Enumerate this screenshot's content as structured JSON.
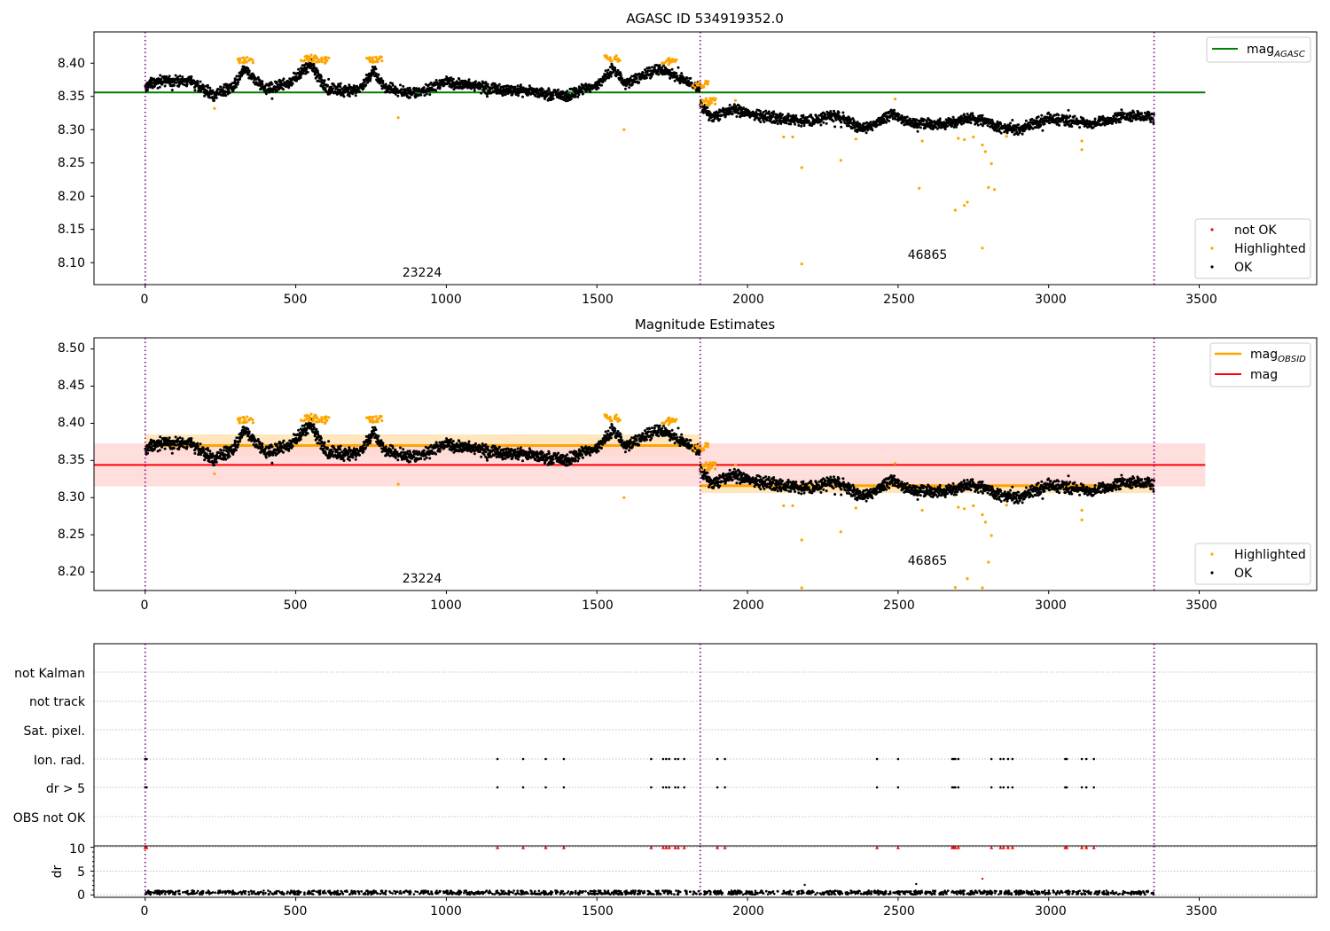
{
  "figure": {
    "title": "AGASC ID 534919352.0",
    "panel2_title": "Magnitude Estimates"
  },
  "colors": {
    "ok": "#000000",
    "highlighted": "#ffa500",
    "not_ok": "#ff0000",
    "agasc_line": "#008000",
    "obsid_line": "#ffa500",
    "mag_line": "#ff0000",
    "obs_boundary": "#800080",
    "band_obsid": "#ffe2b0",
    "band_mag": "#ffd8d8"
  },
  "chart_data": [
    {
      "type": "scatter",
      "panel": "agasc_magnitudes",
      "title": "AGASC ID 534919352.0",
      "xlim": [
        -170,
        3890
      ],
      "ylim": [
        8.067,
        8.447
      ],
      "xticks": [
        0,
        500,
        1000,
        1500,
        2000,
        2500,
        3000,
        3500
      ],
      "yticks": [
        8.1,
        8.15,
        8.2,
        8.25,
        8.3,
        8.35,
        8.4
      ],
      "ytick_labels": [
        "8.10",
        "8.15",
        "8.20",
        "8.25",
        "8.30",
        "8.35",
        "8.40"
      ],
      "grid": false,
      "obs_boundaries": [
        0,
        1843,
        3350
      ],
      "obs_labels": [
        {
          "text": "23224",
          "x": 920,
          "y": 8.079
        },
        {
          "text": "46865",
          "x": 2600,
          "y": 8.106
        }
      ],
      "hlines": [
        {
          "name": "mag_AGASC",
          "label_main": "mag",
          "label_sub": "AGASC",
          "y": 8.356,
          "x0": -170,
          "x1": 3520,
          "color": "#008000"
        }
      ],
      "legend_upper": {
        "position": "upper right",
        "entries": [
          {
            "main": "mag",
            "sub": "AGASC",
            "kind": "line",
            "color": "#008000"
          }
        ]
      },
      "legend_lower": {
        "position": "lower right",
        "entries": [
          {
            "label": "not OK",
            "kind": "dot",
            "color": "#ff0000"
          },
          {
            "label": "Highlighted",
            "kind": "dot",
            "color": "#ffa500"
          },
          {
            "label": "OK",
            "kind": "dot",
            "color": "#000000"
          }
        ]
      },
      "series": [
        {
          "name": "OK",
          "segments": [
            {
              "x": [
                0,
                1843
              ],
              "y_profile": [
                [
                  0,
                  8.365
                ],
                [
                  60,
                  8.375
                ],
                [
                  150,
                  8.372
                ],
                [
                  230,
                  8.352
                ],
                [
                  300,
                  8.368
                ],
                [
                  330,
                  8.392
                ],
                [
                  400,
                  8.36
                ],
                [
                  480,
                  8.372
                ],
                [
                  550,
                  8.398
                ],
                [
                  600,
                  8.362
                ],
                [
                  700,
                  8.358
                ],
                [
                  760,
                  8.388
                ],
                [
                  800,
                  8.362
                ],
                [
                  900,
                  8.354
                ],
                [
                  1000,
                  8.372
                ],
                [
                  1150,
                  8.362
                ],
                [
                  1300,
                  8.356
                ],
                [
                  1400,
                  8.35
                ],
                [
                  1460,
                  8.362
                ],
                [
                  1500,
                  8.366
                ],
                [
                  1550,
                  8.392
                ],
                [
                  1600,
                  8.368
                ],
                [
                  1700,
                  8.392
                ],
                [
                  1800,
                  8.372
                ],
                [
                  1843,
                  8.362
                ]
              ]
            },
            {
              "x": [
                1843,
                3350
              ],
              "y_profile": [
                [
                  1843,
                  8.34
                ],
                [
                  1880,
                  8.318
                ],
                [
                  1950,
                  8.33
                ],
                [
                  2050,
                  8.32
                ],
                [
                  2200,
                  8.312
                ],
                [
                  2300,
                  8.322
                ],
                [
                  2380,
                  8.3
                ],
                [
                  2480,
                  8.322
                ],
                [
                  2550,
                  8.31
                ],
                [
                  2650,
                  8.308
                ],
                [
                  2750,
                  8.318
                ],
                [
                  2850,
                  8.302
                ],
                [
                  2900,
                  8.3
                ],
                [
                  3000,
                  8.318
                ],
                [
                  3150,
                  8.308
                ],
                [
                  3250,
                  8.322
                ],
                [
                  3350,
                  8.318
                ]
              ]
            }
          ]
        },
        {
          "name": "Highlighted",
          "points": [
            [
              230,
              8.332
            ],
            [
              840,
              8.318
            ],
            [
              1590,
              8.3
            ],
            [
              1960,
              8.344
            ],
            [
              2120,
              8.289
            ],
            [
              2150,
              8.289
            ],
            [
              2180,
              8.243
            ],
            [
              2180,
              8.098
            ],
            [
              2310,
              8.254
            ],
            [
              2360,
              8.286
            ],
            [
              2490,
              8.346
            ],
            [
              2570,
              8.212
            ],
            [
              2580,
              8.283
            ],
            [
              2690,
              8.179
            ],
            [
              2700,
              8.287
            ],
            [
              2720,
              8.285
            ],
            [
              2720,
              8.186
            ],
            [
              2730,
              8.191
            ],
            [
              2750,
              8.289
            ],
            [
              2780,
              8.277
            ],
            [
              2780,
              8.122
            ],
            [
              2790,
              8.267
            ],
            [
              2800,
              8.213
            ],
            [
              2810,
              8.249
            ],
            [
              2820,
              8.21
            ],
            [
              2860,
              8.29
            ],
            [
              3110,
              8.283
            ],
            [
              3110,
              8.27
            ]
          ],
          "clusters": [
            [
              310,
              8.404
            ],
            [
              520,
              8.408
            ],
            [
              560,
              8.404
            ],
            [
              740,
              8.405
            ],
            [
              1530,
              8.407
            ],
            [
              1720,
              8.403
            ],
            [
              1820,
              8.368
            ],
            [
              1850,
              8.342
            ]
          ]
        }
      ]
    },
    {
      "type": "scatter",
      "panel": "magnitude_estimates",
      "title": "Magnitude Estimates",
      "xlim": [
        -170,
        3890
      ],
      "ylim": [
        8.175,
        8.515
      ],
      "xticks": [
        0,
        500,
        1000,
        1500,
        2000,
        2500,
        3000,
        3500
      ],
      "yticks": [
        8.2,
        8.25,
        8.3,
        8.35,
        8.4,
        8.45,
        8.5
      ],
      "ytick_labels": [
        "8.20",
        "8.25",
        "8.30",
        "8.35",
        "8.40",
        "8.45",
        "8.50"
      ],
      "grid": false,
      "obs_boundaries": [
        0,
        1843,
        3350
      ],
      "obs_labels": [
        {
          "text": "23224",
          "x": 920,
          "y": 8.184
        },
        {
          "text": "46865",
          "x": 2600,
          "y": 8.211
        }
      ],
      "bands": [
        {
          "name": "mag_OBSID_band_1",
          "x0": 0,
          "x1": 1843,
          "y0": 8.355,
          "y1": 8.385,
          "color": "#ffe2b0"
        },
        {
          "name": "mag_OBSID_band_2",
          "x0": 1843,
          "x1": 3350,
          "y0": 8.306,
          "y1": 8.326,
          "color": "#ffe2b0"
        },
        {
          "name": "mag_band",
          "x0": -170,
          "x1": 3520,
          "y0": 8.315,
          "y1": 8.373,
          "color": "#ffd8d8"
        }
      ],
      "hlines": [
        {
          "name": "mag_OBSID_1",
          "y": 8.37,
          "x0": 0,
          "x1": 1843,
          "color": "#ffa500"
        },
        {
          "name": "mag_OBSID_2",
          "y": 8.316,
          "x0": 1843,
          "x1": 3350,
          "color": "#ffa500"
        },
        {
          "name": "mag",
          "y": 8.344,
          "x0": -170,
          "x1": 3520,
          "color": "#ff0000"
        }
      ],
      "legend_upper": {
        "position": "upper right",
        "entries": [
          {
            "main": "mag",
            "sub": "OBSID",
            "kind": "line",
            "color": "#ffa500"
          },
          {
            "main": "mag",
            "sub": "",
            "kind": "line",
            "color": "#ff0000"
          }
        ]
      },
      "legend_lower": {
        "position": "lower right",
        "entries": [
          {
            "label": "Highlighted",
            "kind": "dot",
            "color": "#ffa500"
          },
          {
            "label": "OK",
            "kind": "dot",
            "color": "#000000"
          }
        ]
      },
      "series": [
        {
          "name": "OK",
          "same_as_panel": "agasc_magnitudes"
        },
        {
          "name": "Highlighted",
          "points": [
            [
              230,
              8.332
            ],
            [
              840,
              8.318
            ],
            [
              1590,
              8.3
            ],
            [
              1960,
              8.344
            ],
            [
              2120,
              8.289
            ],
            [
              2150,
              8.289
            ],
            [
              2180,
              8.243
            ],
            [
              2180,
              8.177
            ],
            [
              2310,
              8.254
            ],
            [
              2360,
              8.286
            ],
            [
              2490,
              8.346
            ],
            [
              2580,
              8.283
            ],
            [
              2690,
              8.179
            ],
            [
              2700,
              8.287
            ],
            [
              2720,
              8.285
            ],
            [
              2730,
              8.191
            ],
            [
              2750,
              8.289
            ],
            [
              2780,
              8.277
            ],
            [
              2780,
              8.177
            ],
            [
              2790,
              8.267
            ],
            [
              2800,
              8.213
            ],
            [
              2810,
              8.249
            ],
            [
              2860,
              8.29
            ],
            [
              3110,
              8.283
            ],
            [
              3110,
              8.27
            ]
          ]
        }
      ]
    },
    {
      "type": "scatter",
      "panel": "flags",
      "xlim": [
        -170,
        3890
      ],
      "rows": [
        "not Kalman",
        "not track",
        "Sat. pixel.",
        "Ion. rad.",
        "dr > 5",
        "OBS not OK"
      ],
      "grid": true,
      "obs_boundaries": [
        0,
        1843,
        3350
      ],
      "flag_x": [
        0,
        5,
        1170,
        1255,
        1330,
        1390,
        1680,
        1720,
        1730,
        1740,
        1760,
        1770,
        1790,
        1900,
        1925,
        2430,
        2500,
        2680,
        2685,
        2690,
        2700,
        2810,
        2840,
        2850,
        2865,
        2880,
        3055,
        3060,
        3110,
        3125,
        3150
      ],
      "flagged_rows": [
        "Ion. rad.",
        "dr > 5"
      ]
    },
    {
      "type": "scatter",
      "panel": "dr",
      "ylabel": "dr",
      "xlim": [
        -170,
        3890
      ],
      "ylim": [
        -0.5,
        10.3
      ],
      "yticks": [
        0,
        5,
        10
      ],
      "ytick_labels": [
        "0",
        "5",
        "10"
      ],
      "xticks": [
        0,
        500,
        1000,
        1500,
        2000,
        2500,
        3000,
        3500
      ],
      "grid": true,
      "obs_boundaries": [
        0,
        1843,
        3350
      ],
      "series": [
        {
          "name": "dr OK",
          "y_range": [
            0.1,
            0.9
          ],
          "x_range": [
            0,
            3350
          ]
        },
        {
          "name": "dr not OK",
          "y": 10,
          "x_same_as": "flags.flag_x",
          "marker": "triangle"
        },
        {
          "name": "dr outliers",
          "points": [
            [
              2190,
              2.1
            ],
            [
              2560,
              2.3
            ],
            [
              2780,
              3.4
            ]
          ]
        }
      ]
    }
  ],
  "axis_labels": {
    "p1": {
      "xticks": [
        "0",
        "500",
        "1000",
        "1500",
        "2000",
        "2500",
        "3000",
        "3500"
      ],
      "yticks": [
        "8.10",
        "8.15",
        "8.20",
        "8.25",
        "8.30",
        "8.35",
        "8.40"
      ]
    },
    "p2": {
      "xticks": [
        "0",
        "500",
        "1000",
        "1500",
        "2000",
        "2500",
        "3000",
        "3500"
      ],
      "yticks": [
        "8.20",
        "8.25",
        "8.30",
        "8.35",
        "8.40",
        "8.45",
        "8.50"
      ]
    },
    "p4": {
      "xticks": [
        "0",
        "500",
        "1000",
        "1500",
        "2000",
        "2500",
        "3000",
        "3500"
      ],
      "yticks": [
        "0",
        "5",
        "10"
      ],
      "ylabel": "dr"
    }
  },
  "legends": {
    "p1_upper": {
      "main": "mag",
      "sub": "AGASC"
    },
    "p1_lower": {
      "not_ok": "not OK",
      "highlighted": "Highlighted",
      "ok": "OK"
    },
    "p2_upper": {
      "obsid_main": "mag",
      "obsid_sub": "OBSID",
      "mag": "mag"
    },
    "p2_lower": {
      "highlighted": "Highlighted",
      "ok": "OK"
    }
  },
  "flag_rows": {
    "not_kalman": "not Kalman",
    "not_track": "not track",
    "sat_pixel": "Sat. pixel.",
    "ion_rad": "Ion. rad.",
    "dr_gt_5": "dr > 5",
    "obs_not_ok": "OBS not OK"
  },
  "obs_ids": {
    "first": "23224",
    "second": "46865"
  }
}
